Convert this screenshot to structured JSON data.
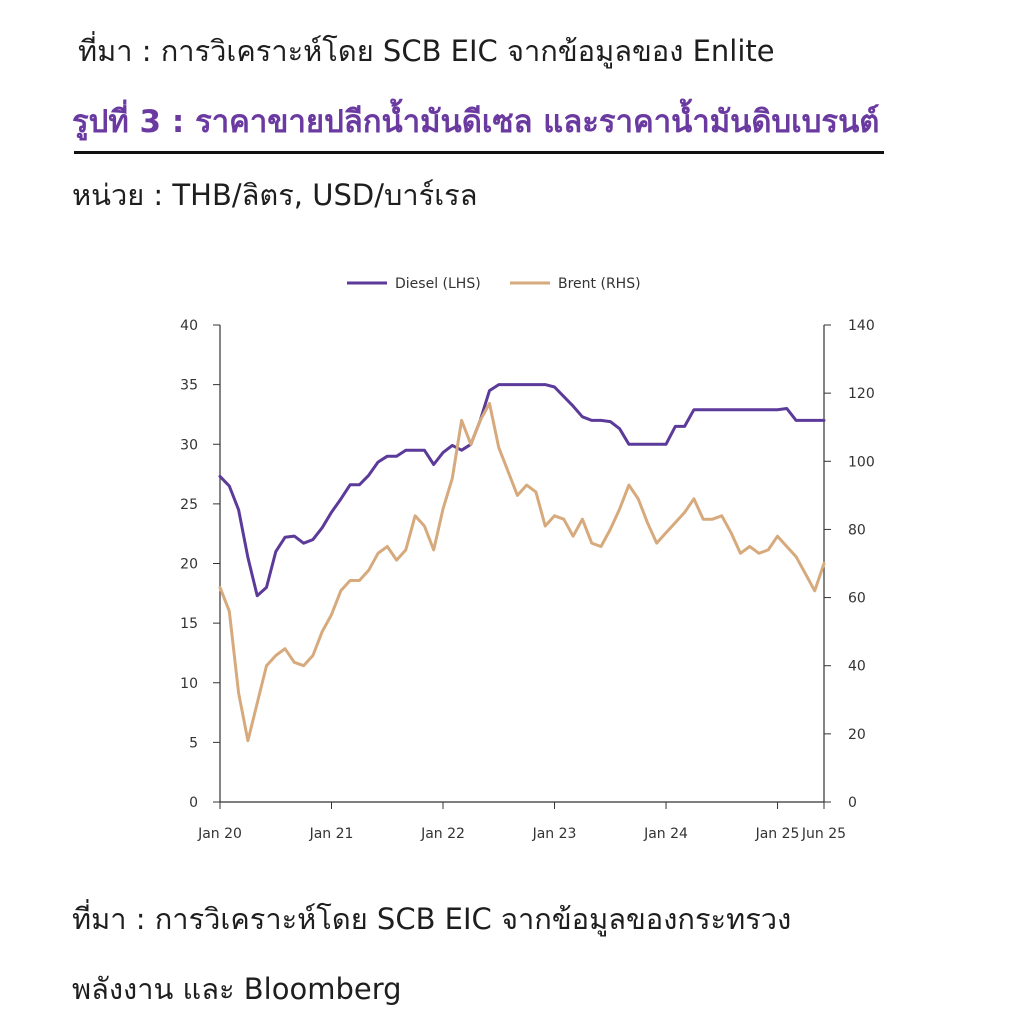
{
  "header": {
    "source_top": "ที่มา : การวิเคราะห์โดย SCB EIC จากข้อมูลของ Enlite",
    "title": "รูปที่ 3 : ราคาขายปลีกน้ำมันดีเซล และราคาน้ำมันดิบเบรนต์",
    "unit": "หน่วย : THB/ลิตร, USD/บาร์เรล"
  },
  "footer": {
    "note_line1": "ที่มา : การวิเคราะห์โดย SCB EIC จากข้อมูลของกระทรวง",
    "note_line2": "พลังงาน และ Bloomberg"
  },
  "chart_data": {
    "type": "line",
    "title": "",
    "xlabel": "",
    "ylabel": "",
    "legend_position": "top-center",
    "grid": false,
    "x_ticks": [
      "Jan 20",
      "Jan 21",
      "Jan 22",
      "Jan 23",
      "Jan 24",
      "Jan 25",
      "Jun 25"
    ],
    "x_range": [
      "2020-01",
      "2025-06"
    ],
    "y_left": {
      "min": 0,
      "max": 40,
      "ticks": [
        0,
        5,
        10,
        15,
        20,
        25,
        30,
        35,
        40
      ]
    },
    "y_right": {
      "min": 0,
      "max": 140,
      "ticks": [
        0,
        20,
        40,
        60,
        80,
        100,
        120,
        140
      ]
    },
    "series": [
      {
        "name": "Diesel (LHS)",
        "axis": "left",
        "color": "#5c3a9a",
        "points": [
          [
            "2020-01",
            27.3
          ],
          [
            "2020-02",
            26.5
          ],
          [
            "2020-03",
            24.5
          ],
          [
            "2020-04",
            20.5
          ],
          [
            "2020-05",
            17.3
          ],
          [
            "2020-06",
            18.0
          ],
          [
            "2020-07",
            21.0
          ],
          [
            "2020-08",
            22.2
          ],
          [
            "2020-09",
            22.3
          ],
          [
            "2020-10",
            21.7
          ],
          [
            "2020-11",
            22.0
          ],
          [
            "2020-12",
            23.0
          ],
          [
            "2021-01",
            24.3
          ],
          [
            "2021-02",
            25.4
          ],
          [
            "2021-03",
            26.6
          ],
          [
            "2021-04",
            26.6
          ],
          [
            "2021-05",
            27.4
          ],
          [
            "2021-06",
            28.5
          ],
          [
            "2021-07",
            29.0
          ],
          [
            "2021-08",
            29.0
          ],
          [
            "2021-09",
            29.5
          ],
          [
            "2021-10",
            29.5
          ],
          [
            "2021-11",
            29.5
          ],
          [
            "2021-12",
            28.3
          ],
          [
            "2022-01",
            29.3
          ],
          [
            "2022-02",
            29.9
          ],
          [
            "2022-03",
            29.5
          ],
          [
            "2022-04",
            30.0
          ],
          [
            "2022-05",
            32.0
          ],
          [
            "2022-06",
            34.5
          ],
          [
            "2022-07",
            35.0
          ],
          [
            "2022-08",
            35.0
          ],
          [
            "2022-09",
            35.0
          ],
          [
            "2022-10",
            35.0
          ],
          [
            "2022-11",
            35.0
          ],
          [
            "2022-12",
            35.0
          ],
          [
            "2023-01",
            34.8
          ],
          [
            "2023-02",
            34.0
          ],
          [
            "2023-03",
            33.2
          ],
          [
            "2023-04",
            32.3
          ],
          [
            "2023-05",
            32.0
          ],
          [
            "2023-06",
            32.0
          ],
          [
            "2023-07",
            31.9
          ],
          [
            "2023-08",
            31.3
          ],
          [
            "2023-09",
            30.0
          ],
          [
            "2023-10",
            30.0
          ],
          [
            "2023-11",
            30.0
          ],
          [
            "2023-12",
            30.0
          ],
          [
            "2024-01",
            30.0
          ],
          [
            "2024-02",
            31.5
          ],
          [
            "2024-03",
            31.5
          ],
          [
            "2024-04",
            32.9
          ],
          [
            "2024-05",
            32.9
          ],
          [
            "2024-06",
            32.9
          ],
          [
            "2024-07",
            32.9
          ],
          [
            "2024-08",
            32.9
          ],
          [
            "2024-09",
            32.9
          ],
          [
            "2024-10",
            32.9
          ],
          [
            "2024-11",
            32.9
          ],
          [
            "2024-12",
            32.9
          ],
          [
            "2025-01",
            32.9
          ],
          [
            "2025-02",
            33.0
          ],
          [
            "2025-03",
            32.0
          ],
          [
            "2025-04",
            32.0
          ],
          [
            "2025-05",
            32.0
          ],
          [
            "2025-06",
            32.0
          ]
        ]
      },
      {
        "name": "Brent (RHS)",
        "axis": "right",
        "color": "#d7aa7d",
        "points": [
          [
            "2020-01",
            63
          ],
          [
            "2020-02",
            56
          ],
          [
            "2020-03",
            32
          ],
          [
            "2020-04",
            18
          ],
          [
            "2020-05",
            29
          ],
          [
            "2020-06",
            40
          ],
          [
            "2020-07",
            43
          ],
          [
            "2020-08",
            45
          ],
          [
            "2020-09",
            41
          ],
          [
            "2020-10",
            40
          ],
          [
            "2020-11",
            43
          ],
          [
            "2020-12",
            50
          ],
          [
            "2021-01",
            55
          ],
          [
            "2021-02",
            62
          ],
          [
            "2021-03",
            65
          ],
          [
            "2021-04",
            65
          ],
          [
            "2021-05",
            68
          ],
          [
            "2021-06",
            73
          ],
          [
            "2021-07",
            75
          ],
          [
            "2021-08",
            71
          ],
          [
            "2021-09",
            74
          ],
          [
            "2021-10",
            84
          ],
          [
            "2021-11",
            81
          ],
          [
            "2021-12",
            74
          ],
          [
            "2022-01",
            86
          ],
          [
            "2022-02",
            95
          ],
          [
            "2022-03",
            112
          ],
          [
            "2022-04",
            105
          ],
          [
            "2022-05",
            112
          ],
          [
            "2022-06",
            117
          ],
          [
            "2022-07",
            104
          ],
          [
            "2022-08",
            97
          ],
          [
            "2022-09",
            90
          ],
          [
            "2022-10",
            93
          ],
          [
            "2022-11",
            91
          ],
          [
            "2022-12",
            81
          ],
          [
            "2023-01",
            84
          ],
          [
            "2023-02",
            83
          ],
          [
            "2023-03",
            78
          ],
          [
            "2023-04",
            83
          ],
          [
            "2023-05",
            76
          ],
          [
            "2023-06",
            75
          ],
          [
            "2023-07",
            80
          ],
          [
            "2023-08",
            86
          ],
          [
            "2023-09",
            93
          ],
          [
            "2023-10",
            89
          ],
          [
            "2023-11",
            82
          ],
          [
            "2023-12",
            76
          ],
          [
            "2024-01",
            79
          ],
          [
            "2024-02",
            82
          ],
          [
            "2024-03",
            85
          ],
          [
            "2024-04",
            89
          ],
          [
            "2024-05",
            83
          ],
          [
            "2024-06",
            83
          ],
          [
            "2024-07",
            84
          ],
          [
            "2024-08",
            79
          ],
          [
            "2024-09",
            73
          ],
          [
            "2024-10",
            75
          ],
          [
            "2024-11",
            73
          ],
          [
            "2024-12",
            74
          ],
          [
            "2025-01",
            78
          ],
          [
            "2025-02",
            75
          ],
          [
            "2025-03",
            72
          ],
          [
            "2025-04",
            67
          ],
          [
            "2025-05",
            62
          ],
          [
            "2025-06",
            70
          ]
        ]
      }
    ]
  }
}
